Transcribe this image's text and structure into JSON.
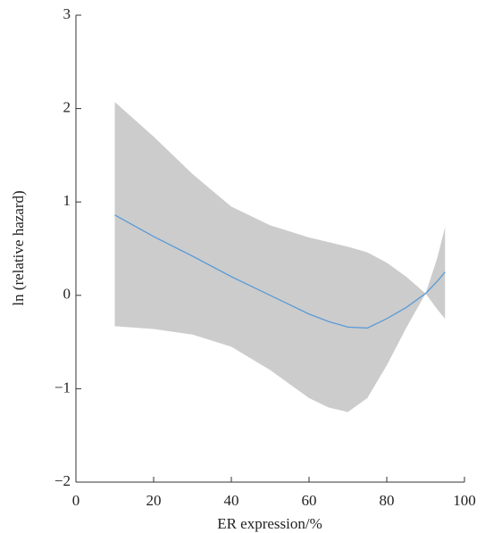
{
  "chart_data": {
    "type": "line",
    "xlabel": "ER expression/%",
    "ylabel": "ln (relative hazard)",
    "x": [
      10,
      20,
      30,
      40,
      50,
      60,
      65,
      70,
      75,
      80,
      85,
      90,
      93,
      95
    ],
    "series": [
      {
        "name": "ln (relative hazard)",
        "color": "#5b9bd5",
        "values": [
          0.86,
          0.63,
          0.42,
          0.2,
          0.0,
          -0.2,
          -0.28,
          -0.34,
          -0.35,
          -0.25,
          -0.13,
          0.02,
          0.15,
          0.25
        ]
      }
    ],
    "band": {
      "color": "#cccccc",
      "upper": [
        2.07,
        1.7,
        1.3,
        0.95,
        0.75,
        0.62,
        0.57,
        0.52,
        0.46,
        0.35,
        0.2,
        0.02,
        0.4,
        0.73
      ],
      "lower": [
        -0.33,
        -0.36,
        -0.42,
        -0.55,
        -0.8,
        -1.1,
        -1.2,
        -1.25,
        -1.1,
        -0.75,
        -0.35,
        0.02,
        -0.15,
        -0.25
      ]
    },
    "xlim": [
      0,
      100
    ],
    "xticks": [
      0,
      20,
      40,
      60,
      80,
      100
    ],
    "ylim": [
      -2,
      3
    ],
    "yticks": [
      {
        "value": -2,
        "label": "−2"
      },
      {
        "value": -1,
        "label": "−1"
      },
      0,
      1,
      2,
      3
    ],
    "grid": false
  }
}
